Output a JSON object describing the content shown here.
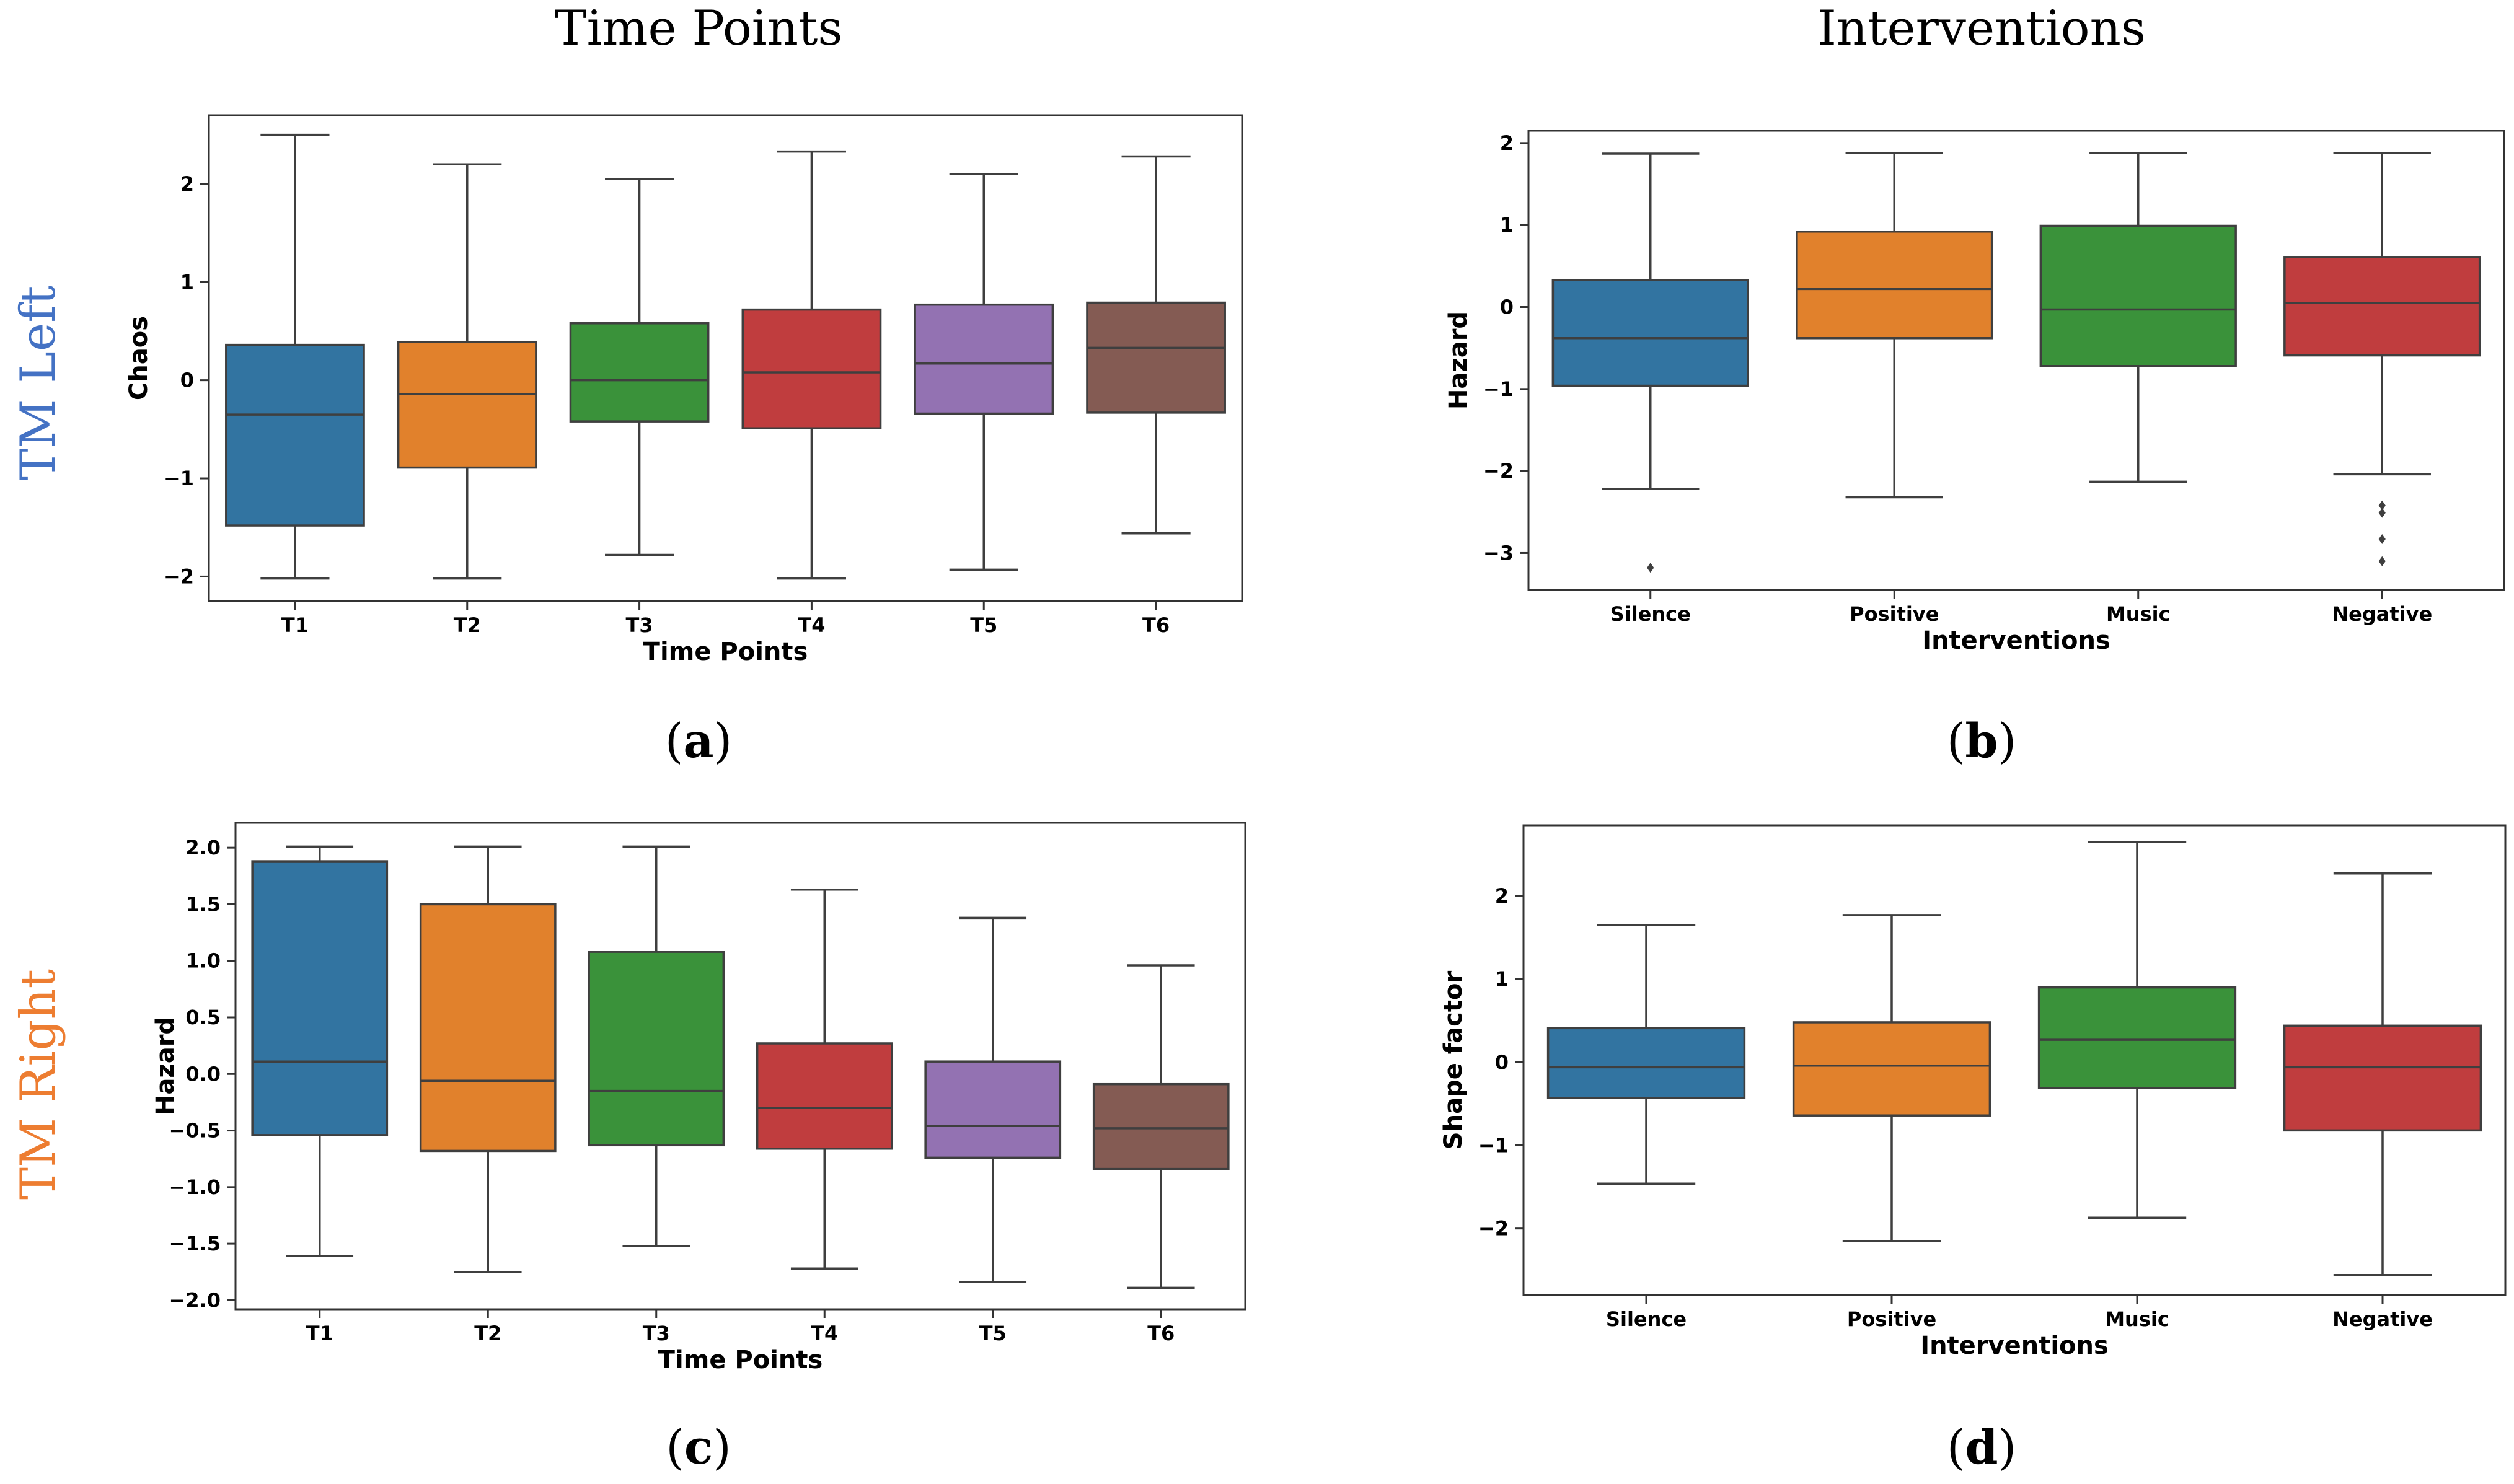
{
  "figure": {
    "column_titles": [
      "Time Points",
      "Interventions"
    ],
    "row_labels": [
      {
        "text": "TM Left",
        "color": "#4472C4"
      },
      {
        "text": "TM Right",
        "color": "#ED7D31"
      }
    ],
    "panel_labels": [
      {
        "pre": "(",
        "letter": "a",
        "post": ")"
      },
      {
        "pre": "(",
        "letter": "b",
        "post": ")"
      },
      {
        "pre": "(",
        "letter": "c",
        "post": ")"
      },
      {
        "pre": "(",
        "letter": "d",
        "post": ")"
      }
    ]
  },
  "colors": {
    "T1": "#3274A1",
    "T2": "#E1812C",
    "T3": "#3A923A",
    "T4": "#C03D3E",
    "T5": "#9372B2",
    "T6": "#845B53",
    "Silence": "#3274A1",
    "Positive": "#E1812C",
    "Music": "#3A923A",
    "Negative": "#C03D3E",
    "line": "#3f3f3f",
    "axis": "#333333"
  },
  "chart_data": [
    {
      "type": "box",
      "title": "",
      "xlabel": "Time Points",
      "ylabel": "Chaos",
      "ylim": [
        -2.25,
        2.7
      ],
      "yticks": [
        -2,
        -1,
        0,
        1,
        2
      ],
      "ytick_labels": [
        "−2",
        "−1",
        "0",
        "1",
        "2"
      ],
      "categories": [
        "T1",
        "T2",
        "T3",
        "T4",
        "T5",
        "T6"
      ],
      "boxes": [
        {
          "whislo": -2.02,
          "q1": -1.48,
          "med": -0.35,
          "q3": 0.36,
          "whishi": 2.5,
          "fliers": []
        },
        {
          "whislo": -2.02,
          "q1": -0.89,
          "med": -0.14,
          "q3": 0.39,
          "whishi": 2.2,
          "fliers": []
        },
        {
          "whislo": -1.78,
          "q1": -0.42,
          "med": 0.0,
          "q3": 0.58,
          "whishi": 2.05,
          "fliers": []
        },
        {
          "whislo": -2.02,
          "q1": -0.49,
          "med": 0.08,
          "q3": 0.72,
          "whishi": 2.33,
          "fliers": []
        },
        {
          "whislo": -1.93,
          "q1": -0.34,
          "med": 0.17,
          "q3": 0.77,
          "whishi": 2.1,
          "fliers": []
        },
        {
          "whislo": -1.56,
          "q1": -0.33,
          "med": 0.33,
          "q3": 0.79,
          "whishi": 2.28,
          "fliers": []
        }
      ]
    },
    {
      "type": "box",
      "title": "",
      "xlabel": "Interventions",
      "ylabel": "Hazard",
      "ylim": [
        -3.45,
        2.15
      ],
      "yticks": [
        -3,
        -2,
        -1,
        0,
        1,
        2
      ],
      "ytick_labels": [
        "−3",
        "−2",
        "−1",
        "0",
        "1",
        "2"
      ],
      "categories": [
        "Silence",
        "Positive",
        "Music",
        "Negative"
      ],
      "boxes": [
        {
          "whislo": -2.22,
          "q1": -0.96,
          "med": -0.38,
          "q3": 0.33,
          "whishi": 1.87,
          "fliers": [
            -3.18
          ]
        },
        {
          "whislo": -2.32,
          "q1": -0.38,
          "med": 0.22,
          "q3": 0.92,
          "whishi": 1.88,
          "fliers": []
        },
        {
          "whislo": -2.13,
          "q1": -0.72,
          "med": -0.03,
          "q3": 0.99,
          "whishi": 1.88,
          "fliers": []
        },
        {
          "whislo": -2.04,
          "q1": -0.59,
          "med": 0.05,
          "q3": 0.61,
          "whishi": 1.88,
          "fliers": [
            -2.42,
            -2.51,
            -2.83,
            -3.1
          ]
        }
      ]
    },
    {
      "type": "box",
      "title": "",
      "xlabel": "Time Points",
      "ylabel": "Hazard",
      "ylim": [
        -2.08,
        2.22
      ],
      "yticks": [
        -2.0,
        -1.5,
        -1.0,
        -0.5,
        0.0,
        0.5,
        1.0,
        1.5,
        2.0
      ],
      "ytick_labels": [
        "−2.0",
        "−1.5",
        "−1.0",
        "−0.5",
        "0.0",
        "0.5",
        "1.0",
        "1.5",
        "2.0"
      ],
      "categories": [
        "T1",
        "T2",
        "T3",
        "T4",
        "T5",
        "T6"
      ],
      "boxes": [
        {
          "whislo": -1.61,
          "q1": -0.54,
          "med": 0.11,
          "q3": 1.88,
          "whishi": 2.01,
          "fliers": []
        },
        {
          "whislo": -1.75,
          "q1": -0.68,
          "med": -0.06,
          "q3": 1.5,
          "whishi": 2.01,
          "fliers": []
        },
        {
          "whislo": -1.52,
          "q1": -0.63,
          "med": -0.15,
          "q3": 1.08,
          "whishi": 2.01,
          "fliers": []
        },
        {
          "whislo": -1.72,
          "q1": -0.66,
          "med": -0.3,
          "q3": 0.27,
          "whishi": 1.63,
          "fliers": []
        },
        {
          "whislo": -1.84,
          "q1": -0.74,
          "med": -0.46,
          "q3": 0.11,
          "whishi": 1.38,
          "fliers": []
        },
        {
          "whislo": -1.89,
          "q1": -0.84,
          "med": -0.48,
          "q3": -0.09,
          "whishi": 0.96,
          "fliers": []
        }
      ]
    },
    {
      "type": "box",
      "title": "",
      "xlabel": "Interventions",
      "ylabel": "Shape factor",
      "ylim": [
        -2.8,
        2.85
      ],
      "yticks": [
        -2,
        -1,
        0,
        1,
        2
      ],
      "ytick_labels": [
        "−2",
        "−1",
        "0",
        "1",
        "2"
      ],
      "categories": [
        "Silence",
        "Positive",
        "Music",
        "Negative"
      ],
      "boxes": [
        {
          "whislo": -1.46,
          "q1": -0.43,
          "med": -0.06,
          "q3": 0.41,
          "whishi": 1.65,
          "fliers": []
        },
        {
          "whislo": -2.15,
          "q1": -0.64,
          "med": -0.04,
          "q3": 0.48,
          "whishi": 1.77,
          "fliers": []
        },
        {
          "whislo": -1.87,
          "q1": -0.31,
          "med": 0.27,
          "q3": 0.9,
          "whishi": 2.65,
          "fliers": []
        },
        {
          "whislo": -2.56,
          "q1": -0.82,
          "med": -0.06,
          "q3": 0.44,
          "whishi": 2.27,
          "fliers": []
        }
      ]
    }
  ]
}
